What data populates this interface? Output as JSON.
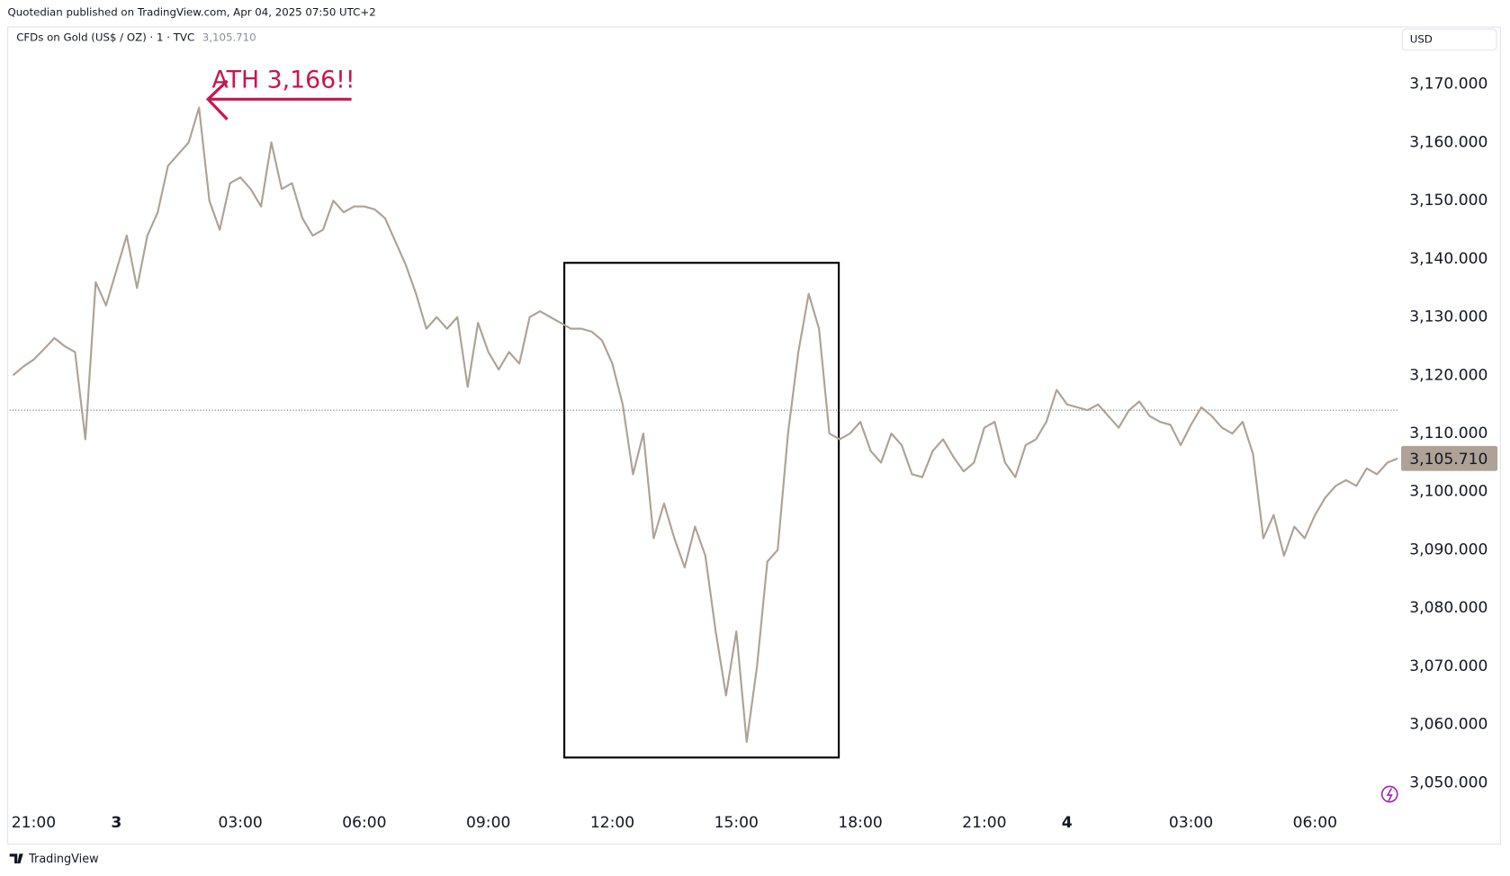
{
  "header": {
    "published": "Quotedian published on TradingView.com, Apr 04, 2025 07:50 UTC+2"
  },
  "footer": {
    "brand": "TradingView"
  },
  "chart_data": {
    "type": "line",
    "title": "CFDs on Gold (US$ / OZ) · 1 · TVC",
    "last_price_label": "3,105.710",
    "currency": "USD",
    "annotation": "ATH 3,166!!",
    "categories": [
      null,
      null,
      "21:00",
      null,
      null,
      null,
      null,
      null,
      null,
      null,
      "3",
      null,
      null,
      null,
      null,
      null,
      null,
      null,
      null,
      null,
      null,
      null,
      "03:00",
      null,
      null,
      null,
      null,
      null,
      null,
      null,
      null,
      null,
      null,
      null,
      "06:00",
      null,
      null,
      null,
      null,
      null,
      null,
      null,
      null,
      null,
      null,
      null,
      "09:00",
      null,
      null,
      null,
      null,
      null,
      null,
      null,
      null,
      null,
      null,
      null,
      "12:00",
      null,
      null,
      null,
      null,
      null,
      null,
      null,
      null,
      null,
      null,
      null,
      "15:00",
      null,
      null,
      null,
      null,
      null,
      null,
      null,
      null,
      null,
      null,
      null,
      "18:00",
      null,
      null,
      null,
      null,
      null,
      null,
      null,
      null,
      null,
      null,
      null,
      "21:00",
      null,
      null,
      null,
      null,
      null,
      null,
      null,
      "4",
      null,
      null,
      null,
      null,
      null,
      null,
      null,
      null,
      null,
      null,
      null,
      "03:00",
      null,
      null,
      null,
      null,
      null,
      null,
      null,
      null,
      null,
      null,
      null,
      "06:00",
      null,
      null,
      null,
      null,
      null,
      null,
      null,
      null
    ],
    "series": [
      {
        "color": "#ada295",
        "values": [
          3120,
          3121.5,
          3122.7,
          3124.5,
          3126.4,
          3125,
          3124,
          3109,
          3136,
          3132,
          3138,
          3144,
          3135,
          3144,
          3148,
          3156,
          3158,
          3160,
          3166,
          3150,
          3145,
          3153,
          3154,
          3152,
          3149,
          3160,
          3152,
          3153,
          3147,
          3144,
          3145,
          3150,
          3148,
          3149,
          3149,
          3148.5,
          3147,
          3143,
          3139,
          3134,
          3128,
          3130,
          3128,
          3130,
          3118,
          3129,
          3124,
          3121,
          3124,
          3122,
          3130,
          3131,
          3130,
          3129,
          3128,
          3128,
          3127.5,
          3126,
          3122,
          3115,
          3103,
          3110,
          3092,
          3098,
          3092,
          3087,
          3094,
          3089,
          3076,
          3065,
          3076,
          3057,
          3070,
          3088,
          3090,
          3110,
          3124,
          3134,
          3128,
          3110,
          3109,
          3110,
          3112,
          3107,
          3105,
          3110,
          3108,
          3103,
          3102.5,
          3107,
          3109,
          3106,
          3103.5,
          3105,
          3111,
          3112,
          3105,
          3102.5,
          3108,
          3109,
          3112,
          3117.5,
          3115,
          3114.5,
          3114,
          3115,
          3113,
          3111,
          3114,
          3115.5,
          3113,
          3112,
          3111.5,
          3108,
          3111.5,
          3114.5,
          3113,
          3111,
          3110,
          3112,
          3106.5,
          3092,
          3096,
          3089,
          3094,
          3092,
          3096,
          3099,
          3101,
          3102,
          3101,
          3104,
          3103,
          3105,
          3105.71
        ]
      }
    ],
    "reference_line": 3114,
    "ylim": [
      3045.9,
      3179.5
    ],
    "yticks": [
      {
        "value": 3050,
        "label": "3,050.000"
      },
      {
        "value": 3060,
        "label": "3,060.000"
      },
      {
        "value": 3070,
        "label": "3,070.000"
      },
      {
        "value": 3080,
        "label": "3,080.000"
      },
      {
        "value": 3090,
        "label": "3,090.000"
      },
      {
        "value": 3100,
        "label": "3,100.000"
      },
      {
        "value": 3110,
        "label": "3,110.000"
      },
      {
        "value": 3120,
        "label": "3,120.000"
      },
      {
        "value": 3130,
        "label": "3,130.000"
      },
      {
        "value": 3140,
        "label": "3,140.000"
      },
      {
        "value": 3150,
        "label": "3,150.000"
      },
      {
        "value": 3160,
        "label": "3,160.000"
      },
      {
        "value": 3170,
        "label": "3,170.000"
      }
    ],
    "grid": false
  }
}
